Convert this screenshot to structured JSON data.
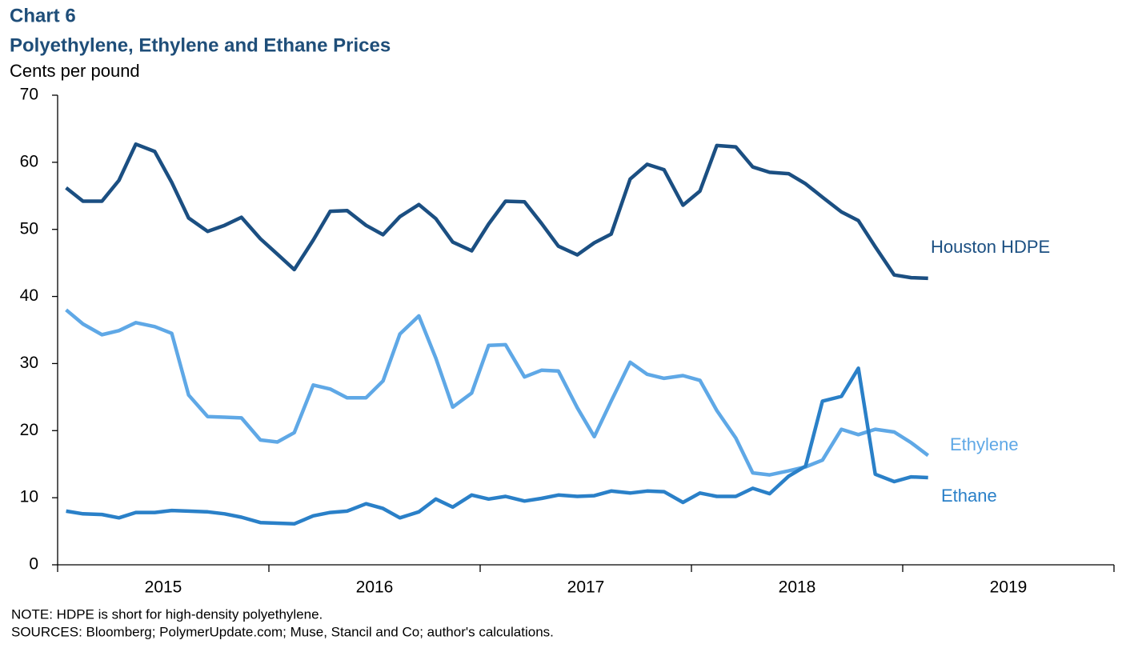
{
  "chart_data": {
    "type": "line",
    "title": "Chart 6",
    "subtitle": "Polyethylene, Ethylene and Ethane Prices",
    "y_label": "Cents per pound",
    "note": "NOTE: HDPE is short for high-density polyethylene.",
    "sources": "SOURCES: Bloomberg; PolymerUpdate.com; Muse, Stancil and Co; author's calculations.",
    "x": [
      2015.04,
      2015.12,
      2015.21,
      2015.29,
      2015.37,
      2015.46,
      2015.54,
      2015.62,
      2015.71,
      2015.79,
      2015.87,
      2015.96,
      2016.04,
      2016.12,
      2016.21,
      2016.29,
      2016.37,
      2016.46,
      2016.54,
      2016.62,
      2016.71,
      2016.79,
      2016.87,
      2016.96,
      2017.04,
      2017.12,
      2017.21,
      2017.29,
      2017.37,
      2017.46,
      2017.54,
      2017.62,
      2017.71,
      2017.79,
      2017.87,
      2017.96,
      2018.04,
      2018.12,
      2018.21,
      2018.29,
      2018.37,
      2018.46,
      2018.54,
      2018.62,
      2018.71,
      2018.79,
      2018.87,
      2018.96,
      2019.04,
      2019.12
    ],
    "xlim": [
      2015,
      2020
    ],
    "xticks": [
      2015,
      2016,
      2017,
      2018,
      2019,
      2020
    ],
    "x_labels": [
      {
        "value": 2015.5,
        "label": "2015"
      },
      {
        "value": 2016.5,
        "label": "2016"
      },
      {
        "value": 2017.5,
        "label": "2017"
      },
      {
        "value": 2018.5,
        "label": "2018"
      },
      {
        "value": 2019.5,
        "label": "2019"
      }
    ],
    "ylim": [
      0,
      70
    ],
    "yticks": [
      0,
      10,
      20,
      30,
      40,
      50,
      60,
      70
    ],
    "grid": false,
    "series": [
      {
        "name": "Houston HDPE",
        "color": "#1b4f82",
        "values": [
          56.2,
          54.2,
          54.2,
          57.3,
          62.7,
          61.6,
          57.0,
          51.7,
          49.7,
          50.6,
          51.8,
          48.6,
          46.3,
          44.0,
          48.4,
          52.7,
          52.8,
          50.6,
          49.2,
          51.9,
          53.7,
          51.6,
          48.1,
          46.8,
          50.8,
          54.2,
          54.1,
          50.9,
          47.5,
          46.2,
          48.0,
          49.3,
          57.5,
          59.7,
          58.9,
          53.6,
          55.7,
          62.5,
          62.3,
          59.3,
          58.5,
          58.3,
          56.8,
          54.8,
          52.6,
          51.3,
          47.4,
          43.2,
          42.8,
          42.7
        ]
      },
      {
        "name": "Ethylene",
        "color": "#5fa8e6",
        "values": [
          38.0,
          35.9,
          34.3,
          34.9,
          36.1,
          35.5,
          34.5,
          25.3,
          22.1,
          22.0,
          21.9,
          18.6,
          18.3,
          19.7,
          26.8,
          26.2,
          24.9,
          24.9,
          27.4,
          34.4,
          37.1,
          30.8,
          23.5,
          25.6,
          32.7,
          32.8,
          28.0,
          29.0,
          28.9,
          23.4,
          19.1,
          24.4,
          30.2,
          28.4,
          27.8,
          28.2,
          27.5,
          23.0,
          18.9,
          13.7,
          13.4,
          14.0,
          14.6,
          15.6,
          20.2,
          19.4,
          20.2,
          19.8,
          18.2,
          16.3
        ]
      },
      {
        "name": "Ethane",
        "color": "#2a80c8",
        "values": [
          8.0,
          7.6,
          7.5,
          7.0,
          7.8,
          7.8,
          8.1,
          8.0,
          7.9,
          7.6,
          7.1,
          6.3,
          6.2,
          6.1,
          7.3,
          7.8,
          8.0,
          9.1,
          8.4,
          7.0,
          7.9,
          9.8,
          8.6,
          10.4,
          9.8,
          10.2,
          9.5,
          9.9,
          10.4,
          10.2,
          10.3,
          11.0,
          10.7,
          11.0,
          10.9,
          9.3,
          10.7,
          10.2,
          10.2,
          11.4,
          10.6,
          13.2,
          14.7,
          24.4,
          25.1,
          29.3,
          13.5,
          12.4,
          13.1,
          13.0
        ]
      }
    ]
  }
}
